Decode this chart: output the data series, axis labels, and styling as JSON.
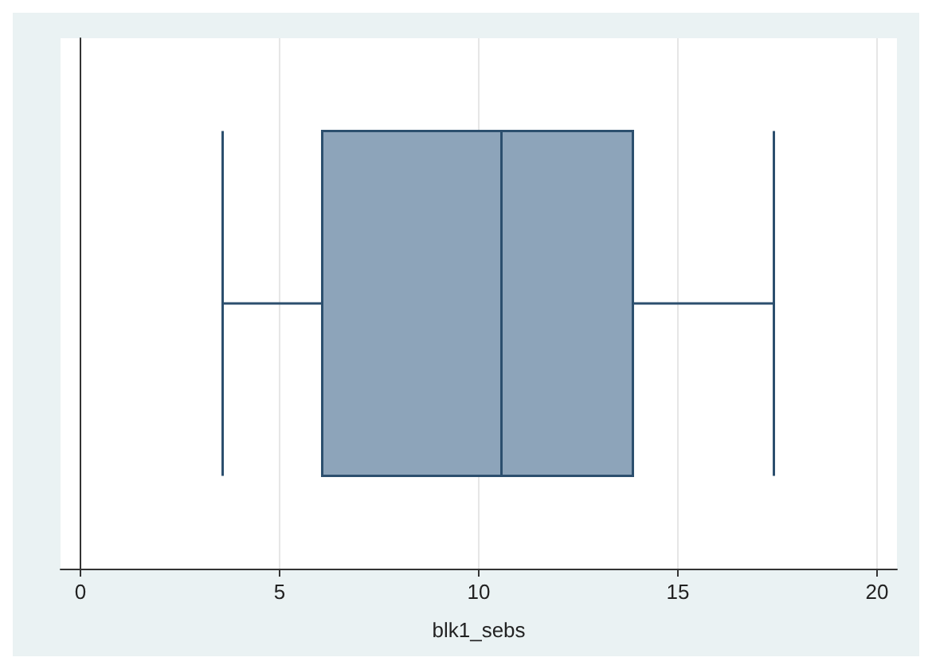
{
  "chart_data": {
    "type": "box",
    "orientation": "horizontal",
    "xlabel": "blk1_sebs",
    "categories": [
      null
    ],
    "color": "#8da4ba",
    "boxes": [
      {
        "low": 3.57,
        "q1": 6.07,
        "median": 10.57,
        "q3": 13.87,
        "high": 17.41
      }
    ],
    "xlim": [
      -0.5,
      20.5
    ],
    "xticks": [
      0,
      5,
      10,
      15,
      20
    ],
    "grid": "x"
  }
}
